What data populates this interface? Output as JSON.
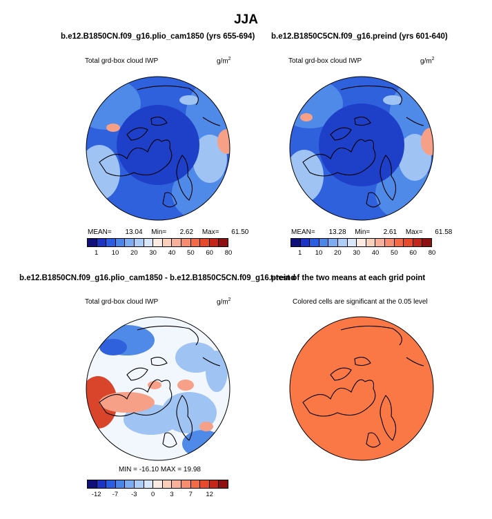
{
  "main_title": "JJA",
  "panels": {
    "top_left": {
      "case_title": "b.e12.B1850CN.f09_g16.plio_cam1850 (yrs 655-694)",
      "variable": "Total grd-box cloud IWP",
      "units_base": "g/m",
      "units_exp": "2",
      "mean_label": "MEAN=",
      "mean_value": "13.04",
      "min_label": "Min=",
      "min_value": "2.62",
      "max_label": "Max=",
      "max_value": "61.50"
    },
    "top_right": {
      "case_title": "b.e12.B1850C5CN.f09_g16.preind (yrs 601-640)",
      "variable": "Total grd-box cloud IWP",
      "units_base": "g/m",
      "units_exp": "2",
      "mean_label": "MEAN=",
      "mean_value": "13.28",
      "min_label": "Min=",
      "min_value": "2.61",
      "max_label": "Max=",
      "max_value": "61.58"
    },
    "bottom_left": {
      "case_title": "b.e12.B1850CN.f09_g16.plio_cam1850 - b.e12.B1850C5CN.f09_g16.preind",
      "variable": "Total grd-box cloud IWP",
      "units_base": "g/m",
      "units_exp": "2",
      "minmax_text": "MIN = -16.10 MAX =  19.98"
    },
    "bottom_right": {
      "case_title": "t-test of the two means at each grid point",
      "subtitle": "Colored cells are significant at the 0.05 level",
      "fill_color": "#F97845"
    }
  },
  "colorbars": {
    "abs": {
      "colors": [
        "#10107A",
        "#1C34C4",
        "#2A5DE0",
        "#4A86E8",
        "#7DADF0",
        "#AECDF6",
        "#D9E7FB",
        "#FCEBE2",
        "#FBD0BB",
        "#F9B09A",
        "#F78D70",
        "#F26A46",
        "#E64A2A",
        "#C4271A",
        "#8E1010"
      ],
      "tick_labels": [
        "1",
        "10",
        "20",
        "30",
        "40",
        "50",
        "60",
        "80"
      ]
    },
    "diff": {
      "colors": [
        "#10107A",
        "#1C34C4",
        "#2A5DE0",
        "#4A86E8",
        "#7DADF0",
        "#AECDF6",
        "#D9E7FB",
        "#FCEBE2",
        "#FBD0BB",
        "#F9B09A",
        "#F78D70",
        "#F26A46",
        "#E64A2A",
        "#C4271A",
        "#8E1010"
      ],
      "tick_labels": [
        "-12",
        "-7",
        "-3",
        "0",
        "3",
        "7",
        "12"
      ]
    }
  },
  "map_colors": {
    "deep": "#1E3FC8",
    "mid": "#2F61DD",
    "light": "#4F8AE8",
    "pale": "#9FC3F2",
    "white": "#F2F6FD",
    "warm": "#F7A088",
    "hot": "#D9452A",
    "coast": "#000000"
  }
}
